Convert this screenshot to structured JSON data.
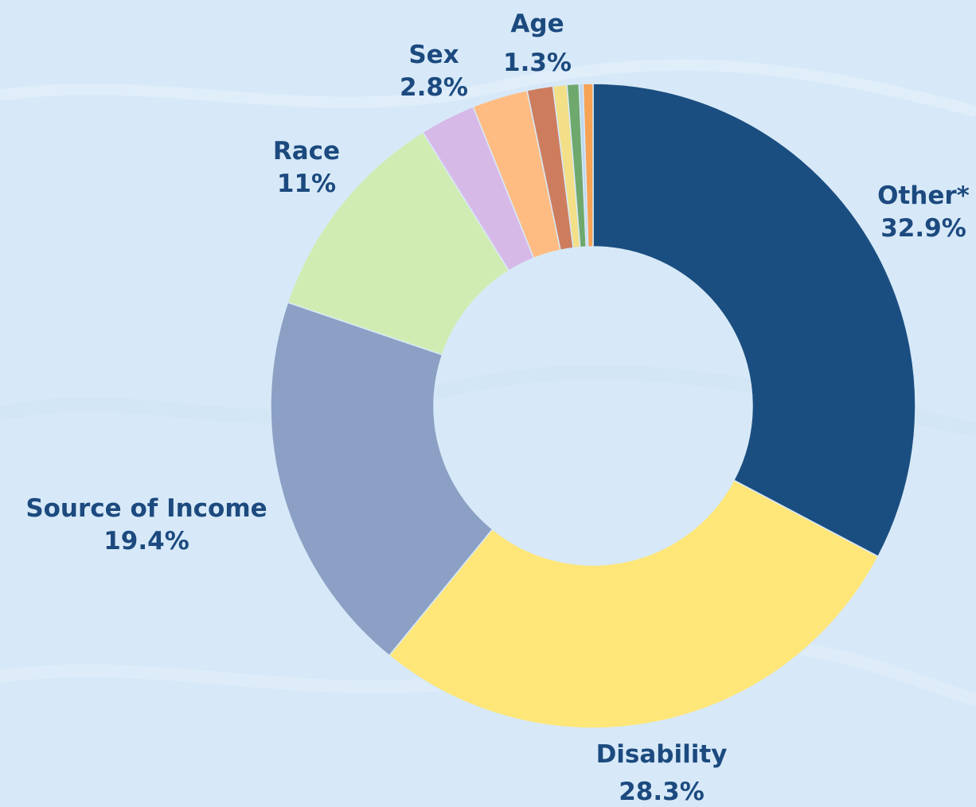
{
  "chart_data": {
    "type": "pie",
    "variant": "donut",
    "slices": [
      {
        "label": "Other*",
        "value_label": "32.9%",
        "value": 32.9,
        "color": "#1b4e80"
      },
      {
        "label": "Disability",
        "value_label": "28.3%",
        "value": 28.3,
        "color": "#fee679"
      },
      {
        "label": "Source of Income",
        "value_label": "19.4%",
        "value": 19.4,
        "color": "#8ba0c4"
      },
      {
        "label": "Race",
        "value_label": "11%",
        "value": 11.0,
        "color": "#d1ecb3"
      },
      {
        "label": "",
        "value_label": "",
        "value": 2.8,
        "color": "#d7b9e8"
      },
      {
        "label": "Sex",
        "value_label": "2.8%",
        "value": 2.8,
        "color": "#ffbc82"
      },
      {
        "label": "Age",
        "value_label": "1.3%",
        "value": 1.3,
        "color": "#cd7d5e"
      },
      {
        "label": "",
        "value_label": "",
        "value": 0.7,
        "color": "#f2df88"
      },
      {
        "label": "",
        "value_label": "",
        "value": 0.6,
        "color": "#6fa86c"
      },
      {
        "label": "",
        "value_label": "",
        "value": 0.2,
        "color": "#bcd7ee"
      },
      {
        "label": "",
        "value_label": "",
        "value": 0.5,
        "color": "#f7a356"
      }
    ]
  }
}
